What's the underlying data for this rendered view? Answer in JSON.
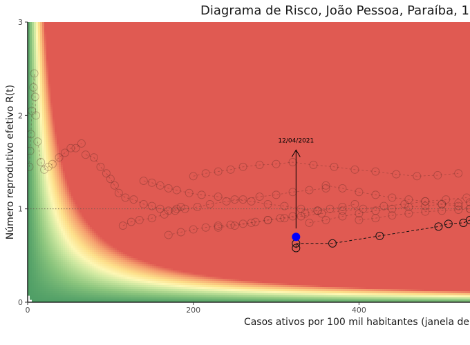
{
  "chart_data": {
    "type": "scatter",
    "title": "Diagrama de Risco, João Pessoa, Paraíba, 1",
    "xlabel": "Casos ativos por 100 mil habitantes (janela de",
    "ylabel": "Número reprodutivo efetivo R(t)",
    "xlim": [
      0,
      534
    ],
    "ylim": [
      0,
      3
    ],
    "x_ticks": [
      0,
      200,
      400
    ],
    "y_ticks": [
      0,
      1,
      2,
      3
    ],
    "reference_line_y": 1,
    "background": "risk gradient (Rt × cases): green low risk → yellow → red high risk",
    "colors": {
      "high_risk": "#e05a52",
      "mid_risk": "#fdf7b4",
      "low_risk": "#4f9e66",
      "current_point": "#0000ff"
    },
    "annotation": {
      "label": "12/04/2021",
      "x": 324,
      "y_start": 0.79,
      "y_end": 1.63
    },
    "current_point": {
      "x": 324,
      "y": 0.7
    },
    "highlighted_series": {
      "x": [
        324,
        324,
        368,
        425,
        496,
        508,
        526,
        534
      ],
      "y": [
        0.58,
        0.63,
        0.63,
        0.71,
        0.81,
        0.84,
        0.85,
        0.88
      ]
    },
    "history_series": [
      {
        "x": [
          2,
          3,
          4,
          5,
          7,
          8,
          9,
          10
        ],
        "y": [
          1.45,
          1.62,
          1.8,
          2.05,
          2.3,
          2.45,
          2.2,
          2.0
        ]
      },
      {
        "x": [
          12,
          16,
          20,
          25,
          30,
          38,
          45,
          52,
          58,
          65
        ],
        "y": [
          1.72,
          1.5,
          1.42,
          1.45,
          1.48,
          1.55,
          1.6,
          1.65,
          1.65,
          1.7
        ]
      },
      {
        "x": [
          70,
          80,
          88,
          95,
          100,
          105,
          110,
          118,
          128,
          140,
          150,
          160,
          170,
          180,
          185
        ],
        "y": [
          1.58,
          1.55,
          1.45,
          1.38,
          1.32,
          1.25,
          1.17,
          1.12,
          1.1,
          1.05,
          1.03,
          1.0,
          0.98,
          1.0,
          1.02
        ]
      },
      {
        "x": [
          115,
          125,
          135,
          150,
          165,
          178,
          190,
          205,
          220,
          240,
          260,
          280,
          300,
          320,
          340,
          360
        ],
        "y": [
          0.82,
          0.86,
          0.88,
          0.9,
          0.94,
          0.98,
          1.0,
          1.02,
          1.05,
          1.08,
          1.1,
          1.13,
          1.15,
          1.18,
          1.2,
          1.22
        ]
      },
      {
        "x": [
          170,
          185,
          200,
          215,
          230,
          245,
          260,
          275,
          290,
          305,
          320,
          335,
          350,
          365,
          380,
          395
        ],
        "y": [
          0.72,
          0.75,
          0.78,
          0.8,
          0.82,
          0.83,
          0.84,
          0.86,
          0.88,
          0.9,
          0.92,
          0.95,
          0.98,
          1.0,
          1.02,
          1.05
        ]
      },
      {
        "x": [
          140,
          150,
          160,
          170,
          180,
          195,
          210,
          230,
          250,
          270,
          290,
          310,
          330,
          350
        ],
        "y": [
          1.3,
          1.28,
          1.25,
          1.22,
          1.2,
          1.17,
          1.15,
          1.13,
          1.1,
          1.08,
          1.05,
          1.03,
          1.0,
          0.98
        ]
      },
      {
        "x": [
          200,
          215,
          230,
          245,
          260,
          280,
          300,
          320,
          345,
          370,
          395,
          420,
          445,
          470,
          495,
          520
        ],
        "y": [
          1.35,
          1.38,
          1.4,
          1.42,
          1.45,
          1.47,
          1.48,
          1.5,
          1.47,
          1.45,
          1.42,
          1.4,
          1.37,
          1.35,
          1.36,
          1.38
        ]
      },
      {
        "x": [
          230,
          250,
          270,
          290,
          310,
          330,
          355,
          380,
          405,
          430,
          455,
          480,
          505,
          530
        ],
        "y": [
          0.8,
          0.82,
          0.85,
          0.88,
          0.9,
          0.92,
          0.95,
          0.98,
          1.0,
          1.03,
          1.05,
          1.08,
          1.1,
          1.12
        ]
      },
      {
        "x": [
          340,
          360,
          380,
          400,
          420,
          440,
          460,
          480,
          500,
          520,
          534
        ],
        "y": [
          0.85,
          0.88,
          0.92,
          0.95,
          0.98,
          1.0,
          1.02,
          1.03,
          1.05,
          1.06,
          1.07
        ]
      },
      {
        "x": [
          360,
          380,
          400,
          420,
          440,
          460,
          480,
          500,
          520,
          534
        ],
        "y": [
          1.25,
          1.22,
          1.18,
          1.15,
          1.12,
          1.1,
          1.08,
          1.05,
          1.03,
          1.0
        ]
      },
      {
        "x": [
          400,
          420,
          440,
          460,
          480,
          500,
          520,
          534
        ],
        "y": [
          0.88,
          0.9,
          0.93,
          0.95,
          0.97,
          0.98,
          0.99,
          1.0
        ]
      }
    ]
  }
}
